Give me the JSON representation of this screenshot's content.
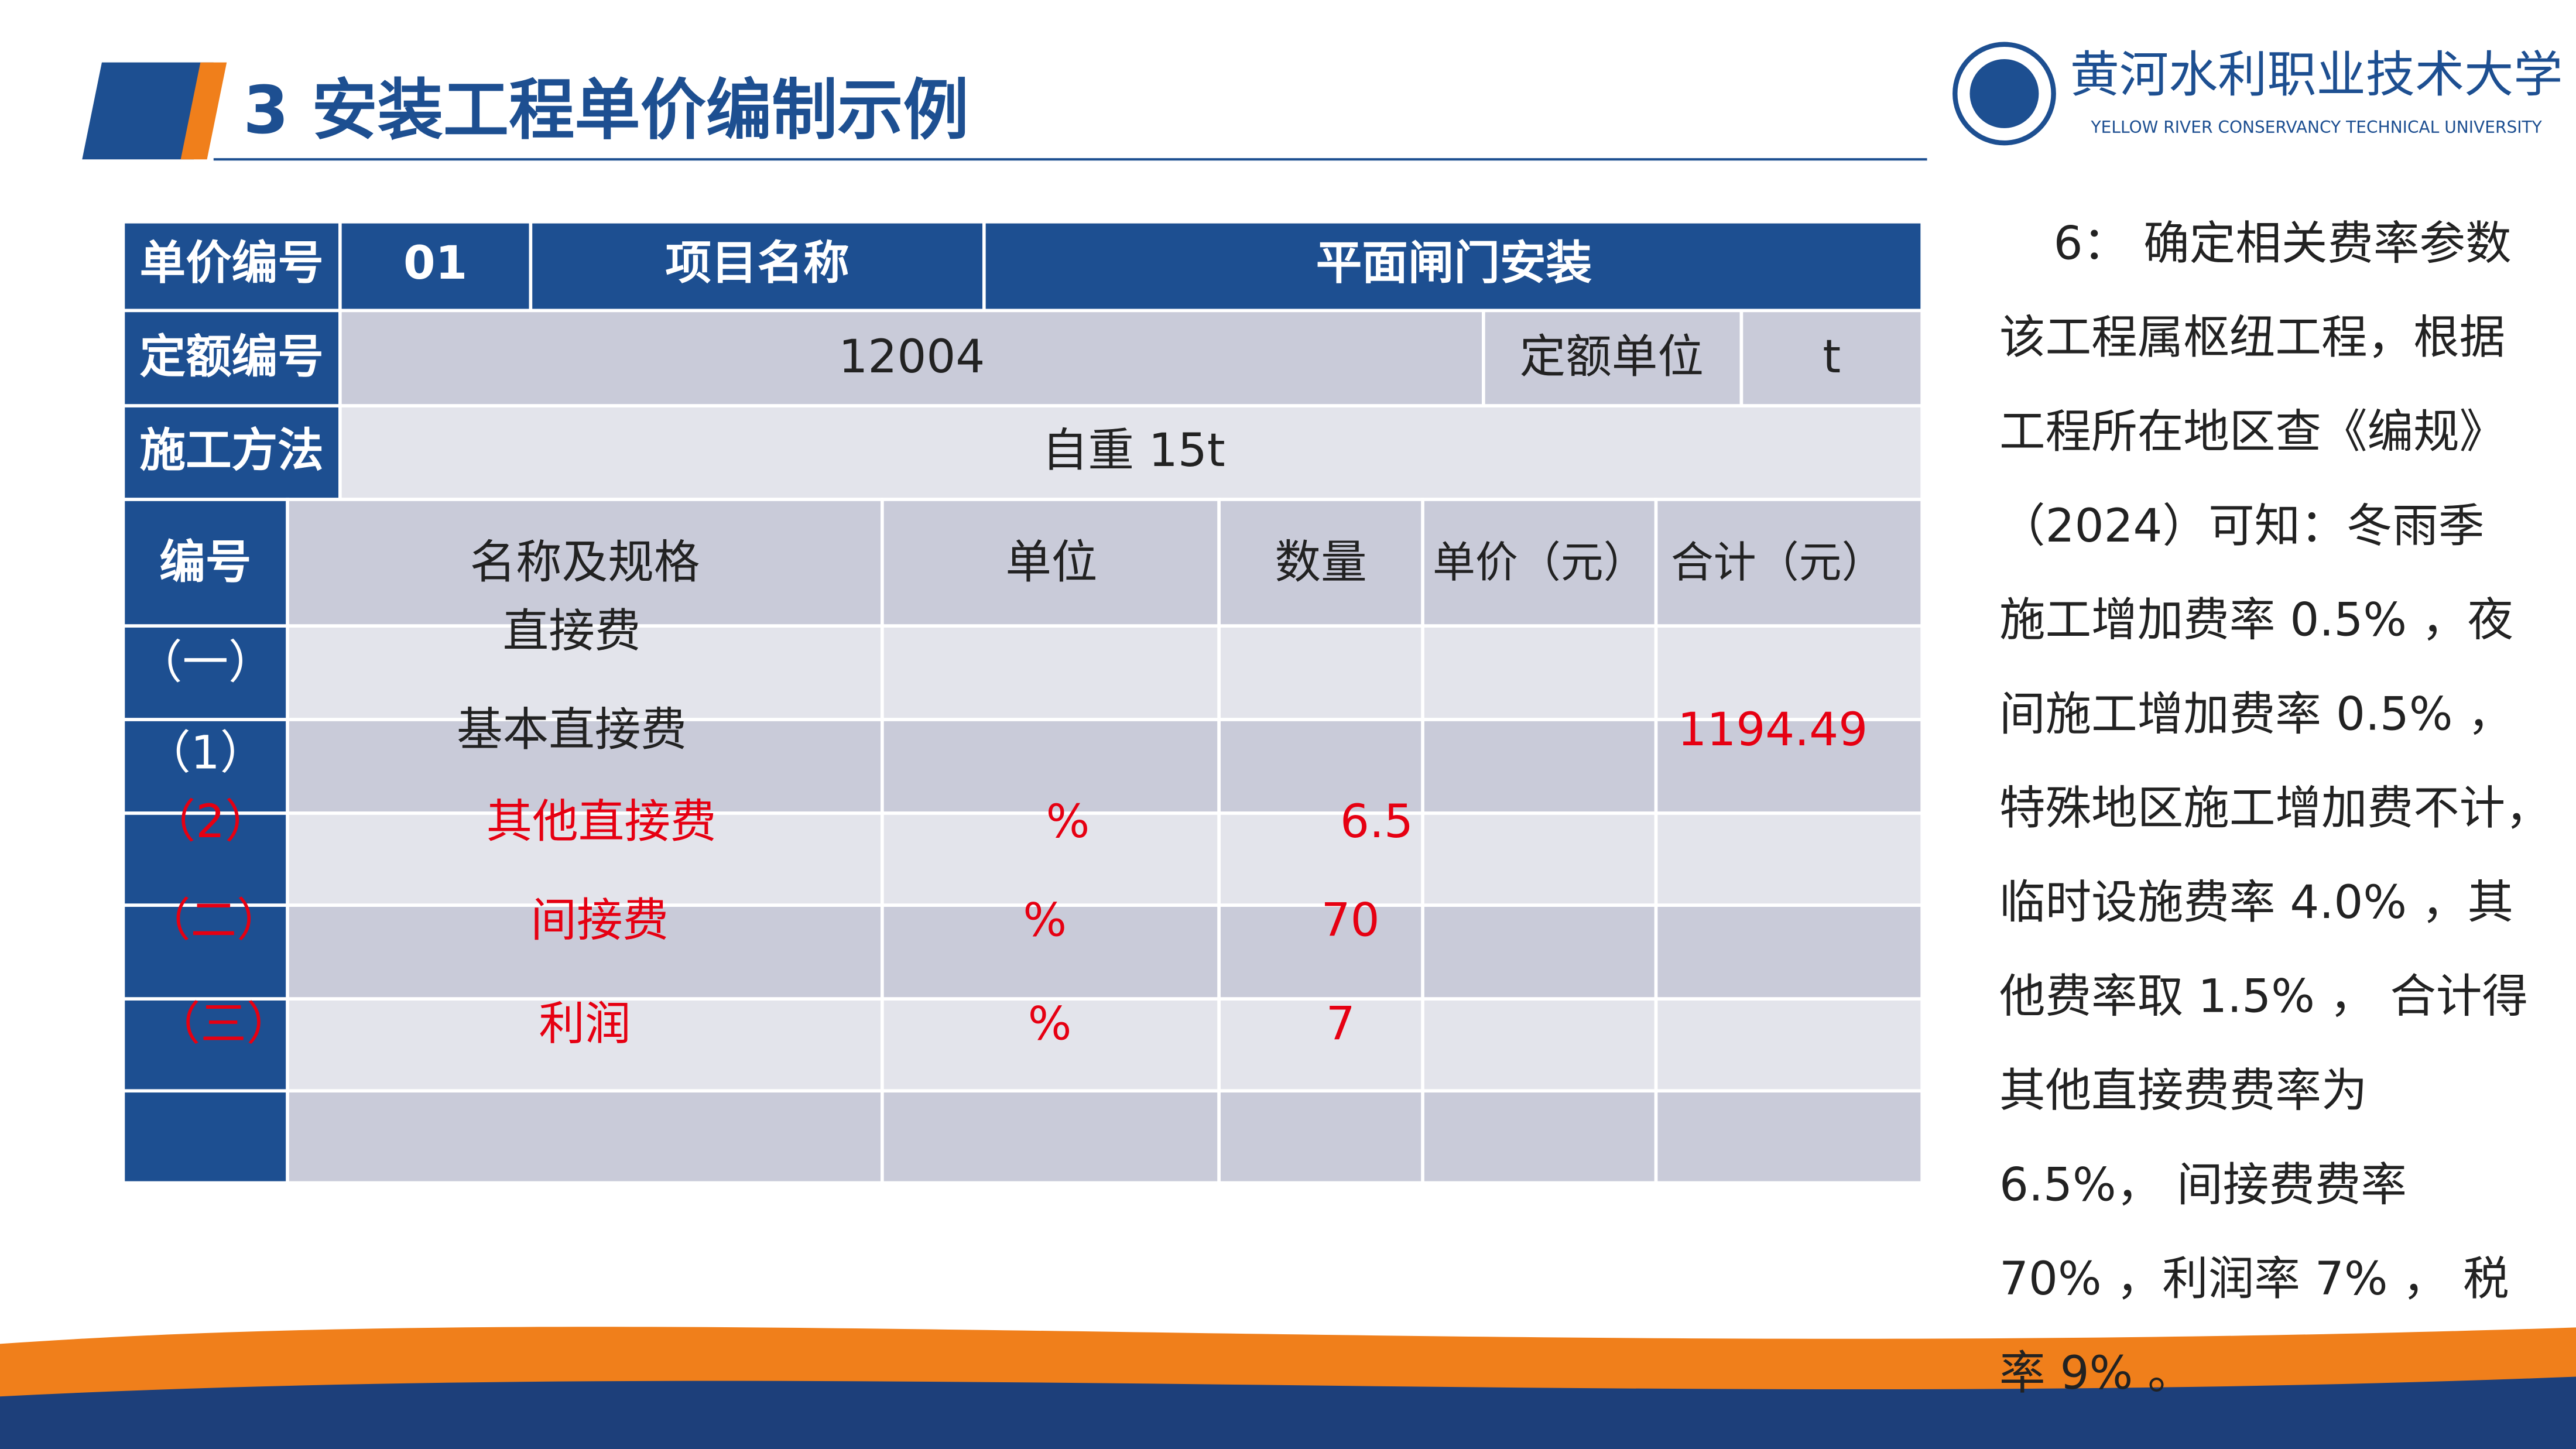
{
  "header": {
    "title": "3 安装工程单价编制示例",
    "logo_cn": "黄河水利职业技术大学",
    "logo_en": "YELLOW RIVER CONSERVANCY TECHNICAL UNIVERSITY"
  },
  "table": {
    "info_rows": [
      [
        "单价编号",
        "01",
        "项目名称",
        "平面闸门安装"
      ],
      [
        "定额编号",
        "12004",
        "定额单位",
        "t"
      ],
      [
        "施工方法",
        "自重 15t"
      ]
    ],
    "columns": [
      "编号",
      "名称及规格",
      "单位",
      "数量",
      "单价（元）",
      "合计（元）"
    ],
    "rows": [
      {
        "no": "（一）",
        "name": "直接费"
      },
      {
        "no": "（1）",
        "name": "基本直接费",
        "total": 1194.49
      },
      {
        "no": "（2）",
        "name": "其他直接费",
        "unit": "%",
        "qty": 6.5
      },
      {
        "no": "（二）",
        "name": "间接费",
        "unit": "%",
        "qty": 70
      },
      {
        "no": "（三）",
        "name": "利润",
        "unit": "%",
        "qty": 7
      }
    ]
  },
  "notes": [
    "6： 确定相关费率参数",
    "该工程属枢纽工程，根据",
    "工程所在地区查《编规》",
    "（2024）可知：冬雨季",
    "施工增加费率 0.5% ，夜",
    "间施工增加费率 0.5% ，",
    "特殊地区施工增加费不计，",
    "临时设施费率 4.0% ，其",
    "他费率取 1.5% ， 合计得",
    "其他直接费费率为",
    "6.5%， 间接费费率",
    "70% ，利润率 7% ， 税",
    "率 9% 。"
  ]
}
